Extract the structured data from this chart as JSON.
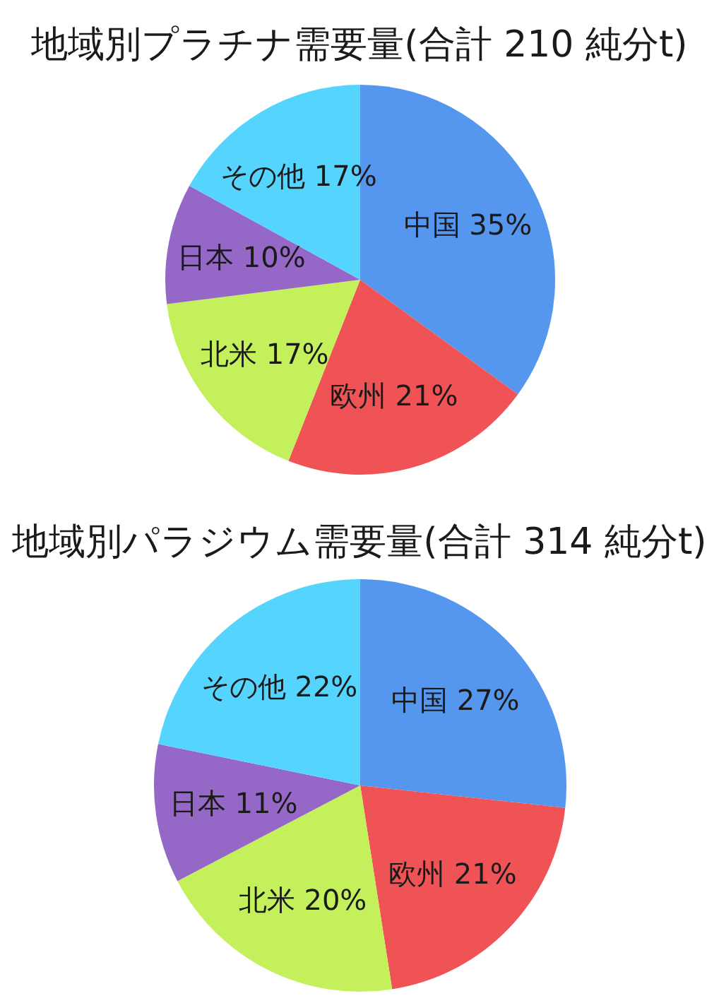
{
  "chart_data": [
    {
      "type": "pie",
      "title": "地域別プラチナ需要量(合計 210 純分t)",
      "categories": [
        "中国",
        "欧州",
        "北米",
        "日本",
        "その他"
      ],
      "values": [
        35,
        21,
        17,
        10,
        17
      ],
      "value_labels": [
        "35%",
        "21%",
        "17%",
        "10%",
        "17%"
      ],
      "colors": [
        "#5596ef",
        "#ef5356",
        "#c4f05c",
        "#9568c8",
        "#55d5fe"
      ]
    },
    {
      "type": "pie",
      "title": "地域別パラジウム需要量(合計 314 純分t)",
      "categories": [
        "中国",
        "欧州",
        "北米",
        "日本",
        "その他"
      ],
      "values": [
        27,
        21,
        20,
        11,
        22
      ],
      "value_labels": [
        "27%",
        "21%",
        "20%",
        "11%",
        "22%"
      ],
      "colors": [
        "#5596ef",
        "#ef5356",
        "#c4f05c",
        "#9568c8",
        "#55d5fe"
      ]
    }
  ]
}
